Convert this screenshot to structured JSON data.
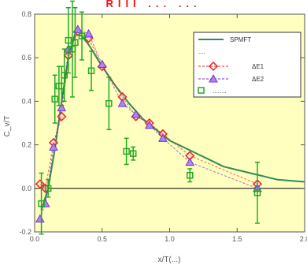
{
  "title": "RIII ... ...",
  "chart_data": {
    "type": "scatter",
    "title": "RIII ... ...",
    "xlabel": "x/T(...)",
    "ylabel": "C_v/T",
    "xlim": [
      0.0,
      2.0
    ],
    "ylim": [
      -0.2,
      0.8
    ],
    "x_ticks": [
      "0.0",
      "0.5",
      "1.0",
      "1.5",
      "2.0"
    ],
    "y_ticks": [
      "0.8",
      "0.6",
      "0.4",
      "0.2",
      "0.0",
      "-0.2"
    ],
    "legend_placement": "top-right",
    "legend_header": "....",
    "series": [
      {
        "name": "SPMFT",
        "kind": "line",
        "color": "#2e8b57",
        "x": [
          0.05,
          0.1,
          0.15,
          0.2,
          0.25,
          0.3,
          0.35,
          0.4,
          0.5,
          0.6,
          0.7,
          0.8,
          0.9,
          1.0,
          1.1,
          1.2,
          1.4,
          1.6,
          1.8,
          2.0
        ],
        "y": [
          -0.1,
          0.0,
          0.18,
          0.4,
          0.6,
          0.71,
          0.7,
          0.66,
          0.56,
          0.47,
          0.39,
          0.32,
          0.27,
          0.22,
          0.19,
          0.16,
          0.1,
          0.07,
          0.04,
          0.03
        ]
      },
      {
        "name": "ΔE1",
        "kind": "markers",
        "marker": "diamond",
        "color": "#ee2222",
        "x": [
          0.04,
          0.08,
          0.14,
          0.2,
          0.25,
          0.32,
          0.4,
          0.5,
          0.65,
          0.75,
          0.85,
          0.95,
          1.15,
          1.65
        ],
        "y": [
          0.02,
          0.0,
          0.21,
          0.33,
          0.61,
          0.72,
          0.69,
          0.56,
          0.42,
          0.33,
          0.3,
          0.25,
          0.15,
          0.02
        ]
      },
      {
        "name": "ΔE2",
        "kind": "markers",
        "marker": "triangle",
        "color": "#7733cc",
        "x": [
          0.04,
          0.08,
          0.14,
          0.2,
          0.25,
          0.32,
          0.4,
          0.5,
          0.65,
          0.75,
          0.85,
          0.95,
          1.15,
          1.65
        ],
        "y": [
          -0.14,
          -0.07,
          0.19,
          0.37,
          0.64,
          0.73,
          0.71,
          0.57,
          0.39,
          0.34,
          0.29,
          0.23,
          0.12,
          0.0
        ]
      },
      {
        "name": "........",
        "kind": "markers_errorbars",
        "marker": "square",
        "color": "#22aa22",
        "x": [
          0.05,
          0.1,
          0.15,
          0.18,
          0.2,
          0.22,
          0.25,
          0.28,
          0.3,
          0.35,
          0.42,
          0.55,
          0.68,
          0.73,
          1.15,
          1.65
        ],
        "y": [
          -0.07,
          0.0,
          0.41,
          0.47,
          0.47,
          0.52,
          0.68,
          0.64,
          0.67,
          0.7,
          0.54,
          0.39,
          0.17,
          0.16,
          0.06,
          -0.02
        ],
        "err": [
          0.14,
          0.04,
          0.11,
          0.09,
          0.09,
          0.12,
          0.15,
          0.22,
          0.16,
          0.11,
          0.09,
          0.12,
          0.06,
          0.03,
          0.03,
          0.14
        ]
      }
    ]
  }
}
